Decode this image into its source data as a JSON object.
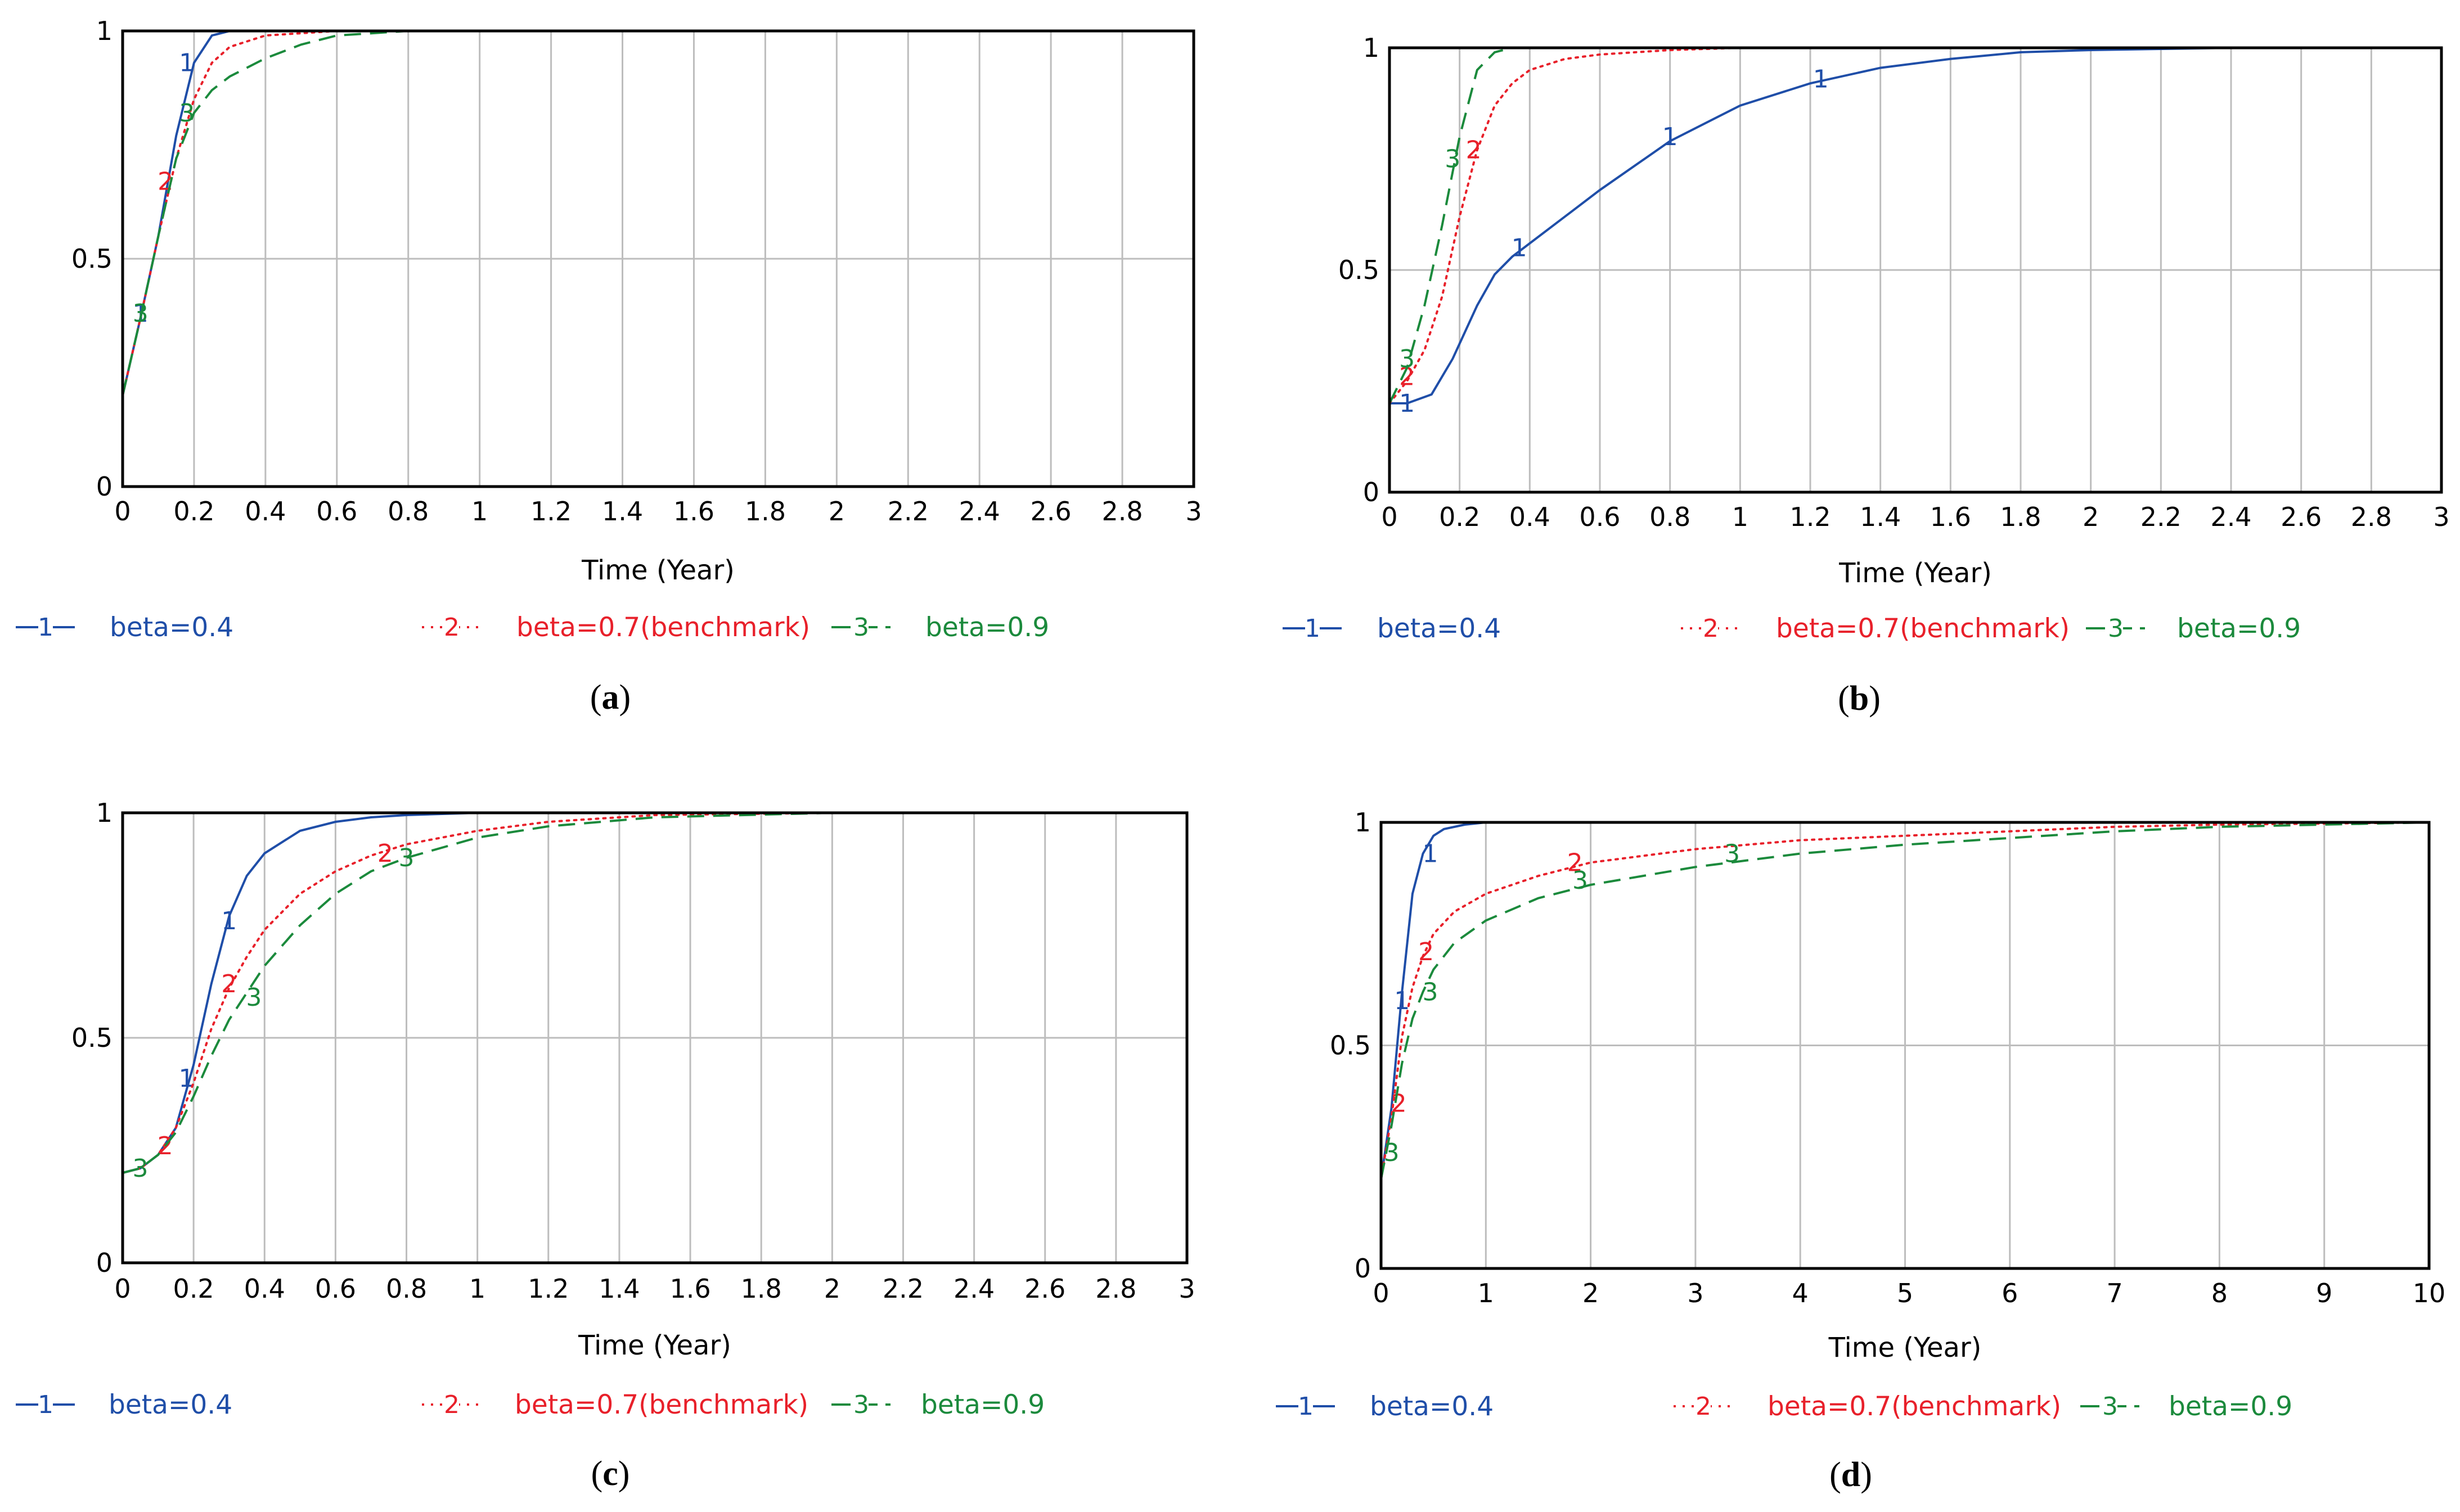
{
  "colors": {
    "s1": "#1f4ea8",
    "s2": "#e8202a",
    "s3": "#1b8a3c",
    "grid": "#bdbdbd",
    "frame": "#000000"
  },
  "chart_data": [
    {
      "type": "line",
      "panel": "a",
      "caption": {
        "open": "(",
        "letter": "a",
        "close": ")"
      },
      "xlabel": "Time (Year)",
      "xlim": [
        0,
        3
      ],
      "ylim": [
        0,
        1
      ],
      "xticks": [
        "0",
        "0.2",
        "0.4",
        "0.6",
        "0.8",
        "1",
        "1.2",
        "1.4",
        "1.6",
        "1.8",
        "2",
        "2.2",
        "2.4",
        "2.6",
        "2.8",
        "3"
      ],
      "yticks": [
        "0",
        "0.5",
        "1"
      ],
      "series": [
        {
          "name": "beta=0.4",
          "marker": "1",
          "style": "solid",
          "x": [
            0,
            0.05,
            0.1,
            0.15,
            0.2,
            0.25,
            0.3,
            0.4,
            0.6,
            1,
            3
          ],
          "y": [
            0.2,
            0.37,
            0.55,
            0.77,
            0.93,
            0.99,
            1,
            1,
            1,
            1,
            1
          ],
          "labels": [
            [
              0.05,
              0.38
            ],
            [
              0.18,
              0.93
            ]
          ]
        },
        {
          "name": "beta=0.7(benchmark)",
          "marker": "2",
          "style": "dotted",
          "x": [
            0,
            0.05,
            0.1,
            0.15,
            0.2,
            0.25,
            0.3,
            0.4,
            0.6,
            0.8,
            1,
            3
          ],
          "y": [
            0.2,
            0.37,
            0.55,
            0.72,
            0.85,
            0.93,
            0.965,
            0.99,
            1,
            1,
            1,
            1
          ],
          "labels": [
            [
              0.12,
              0.67
            ]
          ]
        },
        {
          "name": "beta=0.9",
          "marker": "3",
          "style": "dashed",
          "x": [
            0,
            0.05,
            0.1,
            0.15,
            0.2,
            0.25,
            0.3,
            0.4,
            0.5,
            0.6,
            0.8,
            1,
            3
          ],
          "y": [
            0.2,
            0.37,
            0.55,
            0.72,
            0.82,
            0.87,
            0.9,
            0.94,
            0.97,
            0.99,
            1,
            1,
            1
          ],
          "labels": [
            [
              0.05,
              0.38
            ],
            [
              0.18,
              0.82
            ]
          ]
        }
      ],
      "legend": [
        "beta=0.4",
        "beta=0.7(benchmark)",
        "beta=0.9"
      ]
    },
    {
      "type": "line",
      "panel": "b",
      "caption": {
        "open": "(",
        "letter": "b",
        "close": ")"
      },
      "xlabel": "Time (Year)",
      "xlim": [
        0,
        3
      ],
      "ylim": [
        0,
        1
      ],
      "xticks": [
        "0",
        "0.2",
        "0.4",
        "0.6",
        "0.8",
        "1",
        "1.2",
        "1.4",
        "1.6",
        "1.8",
        "2",
        "2.2",
        "2.4",
        "2.6",
        "2.8",
        "3"
      ],
      "yticks": [
        "0",
        "0.5",
        "1"
      ],
      "series": [
        {
          "name": "beta=0.4",
          "marker": "1",
          "style": "solid",
          "x": [
            0,
            0.05,
            0.12,
            0.18,
            0.25,
            0.3,
            0.35,
            0.4,
            0.5,
            0.6,
            0.8,
            1,
            1.2,
            1.4,
            1.6,
            1.8,
            2,
            2.4,
            3
          ],
          "y": [
            0.2,
            0.2,
            0.22,
            0.3,
            0.42,
            0.49,
            0.53,
            0.56,
            0.62,
            0.68,
            0.79,
            0.87,
            0.92,
            0.955,
            0.975,
            0.99,
            0.995,
            1,
            1
          ],
          "labels": [
            [
              0.05,
              0.2
            ],
            [
              0.37,
              0.55
            ],
            [
              0.8,
              0.8
            ],
            [
              1.23,
              0.93
            ]
          ]
        },
        {
          "name": "beta=0.7(benchmark)",
          "marker": "2",
          "style": "dotted",
          "x": [
            0,
            0.05,
            0.1,
            0.15,
            0.2,
            0.25,
            0.3,
            0.35,
            0.4,
            0.5,
            0.6,
            0.8,
            1,
            1.5,
            2,
            3
          ],
          "y": [
            0.2,
            0.25,
            0.32,
            0.44,
            0.62,
            0.77,
            0.87,
            0.92,
            0.95,
            0.975,
            0.985,
            0.995,
            1,
            1,
            1,
            1
          ],
          "labels": [
            [
              0.05,
              0.26
            ],
            [
              0.24,
              0.77
            ]
          ]
        },
        {
          "name": "beta=0.9",
          "marker": "3",
          "style": "dashed",
          "x": [
            0,
            0.05,
            0.1,
            0.15,
            0.2,
            0.25,
            0.3,
            0.35,
            0.4,
            0.6,
            1,
            3
          ],
          "y": [
            0.2,
            0.28,
            0.42,
            0.6,
            0.8,
            0.95,
            0.99,
            1,
            1,
            1,
            1,
            1
          ],
          "labels": [
            [
              0.05,
              0.3
            ],
            [
              0.18,
              0.75
            ]
          ]
        }
      ],
      "legend": [
        "beta=0.4",
        "beta=0.7(benchmark)",
        "beta=0.9"
      ]
    },
    {
      "type": "line",
      "panel": "c",
      "caption": {
        "open": "(",
        "letter": "c",
        "close": ")"
      },
      "xlabel": "Time (Year)",
      "xlim": [
        0,
        3
      ],
      "ylim": [
        0,
        1
      ],
      "xticks": [
        "0",
        "0.2",
        "0.4",
        "0.6",
        "0.8",
        "1",
        "1.2",
        "1.4",
        "1.6",
        "1.8",
        "2",
        "2.2",
        "2.4",
        "2.6",
        "2.8",
        "3"
      ],
      "yticks": [
        "0",
        "0.5",
        "1"
      ],
      "series": [
        {
          "name": "beta=0.4",
          "marker": "1",
          "style": "solid",
          "x": [
            0,
            0.05,
            0.1,
            0.15,
            0.2,
            0.25,
            0.3,
            0.35,
            0.4,
            0.5,
            0.6,
            0.7,
            0.8,
            1,
            1.2,
            1.5,
            3
          ],
          "y": [
            0.2,
            0.21,
            0.24,
            0.3,
            0.44,
            0.62,
            0.77,
            0.86,
            0.91,
            0.96,
            0.98,
            0.99,
            0.995,
            1,
            1,
            1,
            1
          ],
          "labels": [
            [
              0.18,
              0.41
            ],
            [
              0.3,
              0.76
            ]
          ]
        },
        {
          "name": "beta=0.7(benchmark)",
          "marker": "2",
          "style": "dotted",
          "x": [
            0,
            0.05,
            0.1,
            0.15,
            0.2,
            0.25,
            0.3,
            0.35,
            0.4,
            0.5,
            0.6,
            0.7,
            0.8,
            1,
            1.2,
            1.5,
            2,
            3
          ],
          "y": [
            0.2,
            0.21,
            0.24,
            0.3,
            0.4,
            0.52,
            0.61,
            0.68,
            0.74,
            0.82,
            0.87,
            0.905,
            0.93,
            0.96,
            0.98,
            0.995,
            1,
            1
          ],
          "labels": [
            [
              0.12,
              0.26
            ],
            [
              0.3,
              0.62
            ],
            [
              0.74,
              0.91
            ]
          ]
        },
        {
          "name": "beta=0.9",
          "marker": "3",
          "style": "dashed",
          "x": [
            0,
            0.05,
            0.1,
            0.15,
            0.2,
            0.25,
            0.3,
            0.35,
            0.4,
            0.5,
            0.6,
            0.7,
            0.8,
            1,
            1.2,
            1.5,
            2,
            3
          ],
          "y": [
            0.2,
            0.21,
            0.24,
            0.29,
            0.37,
            0.46,
            0.54,
            0.6,
            0.66,
            0.75,
            0.82,
            0.87,
            0.9,
            0.945,
            0.97,
            0.99,
            1,
            1
          ],
          "labels": [
            [
              0.05,
              0.21
            ],
            [
              0.37,
              0.59
            ],
            [
              0.8,
              0.9
            ]
          ]
        }
      ],
      "legend": [
        "beta=0.4",
        "beta=0.7(benchmark)",
        "beta=0.9"
      ]
    },
    {
      "type": "line",
      "panel": "d",
      "caption": {
        "open": "(",
        "letter": "d",
        "close": ")"
      },
      "xlabel": "Time (Year)",
      "xlim": [
        0,
        10
      ],
      "ylim": [
        0,
        1
      ],
      "xticks": [
        "0",
        "1",
        "2",
        "3",
        "4",
        "5",
        "6",
        "7",
        "8",
        "9",
        "10"
      ],
      "yticks": [
        "0",
        "0.5",
        "1"
      ],
      "series": [
        {
          "name": "beta=0.4",
          "marker": "1",
          "style": "solid",
          "x": [
            0,
            0.1,
            0.2,
            0.3,
            0.4,
            0.5,
            0.6,
            0.8,
            1,
            1.5,
            2,
            3,
            10
          ],
          "y": [
            0.2,
            0.36,
            0.62,
            0.84,
            0.93,
            0.97,
            0.985,
            0.995,
            1,
            1,
            1,
            1,
            1
          ],
          "labels": [
            [
              0.2,
              0.6
            ],
            [
              0.47,
              0.93
            ]
          ]
        },
        {
          "name": "beta=0.7(benchmark)",
          "marker": "2",
          "style": "dotted",
          "x": [
            0,
            0.1,
            0.2,
            0.3,
            0.4,
            0.5,
            0.7,
            1,
            1.5,
            2,
            3,
            4,
            5,
            6,
            7,
            8,
            10
          ],
          "y": [
            0.2,
            0.34,
            0.52,
            0.63,
            0.7,
            0.75,
            0.8,
            0.84,
            0.88,
            0.91,
            0.94,
            0.96,
            0.97,
            0.98,
            0.99,
            0.995,
            1
          ],
          "labels": [
            [
              0.17,
              0.37
            ],
            [
              0.43,
              0.71
            ],
            [
              1.85,
              0.91
            ]
          ]
        },
        {
          "name": "beta=0.9",
          "marker": "3",
          "style": "dashed",
          "x": [
            0,
            0.1,
            0.2,
            0.3,
            0.4,
            0.5,
            0.7,
            1,
            1.5,
            2,
            3,
            4,
            5,
            6,
            7,
            8,
            10
          ],
          "y": [
            0.2,
            0.32,
            0.46,
            0.56,
            0.62,
            0.67,
            0.73,
            0.78,
            0.83,
            0.86,
            0.9,
            0.93,
            0.95,
            0.965,
            0.98,
            0.99,
            1
          ],
          "labels": [
            [
              0.1,
              0.26
            ],
            [
              0.47,
              0.62
            ],
            [
              1.9,
              0.87
            ],
            [
              3.35,
              0.93
            ]
          ]
        }
      ],
      "legend": [
        "beta=0.4",
        "beta=0.7(benchmark)",
        "beta=0.9"
      ]
    }
  ]
}
